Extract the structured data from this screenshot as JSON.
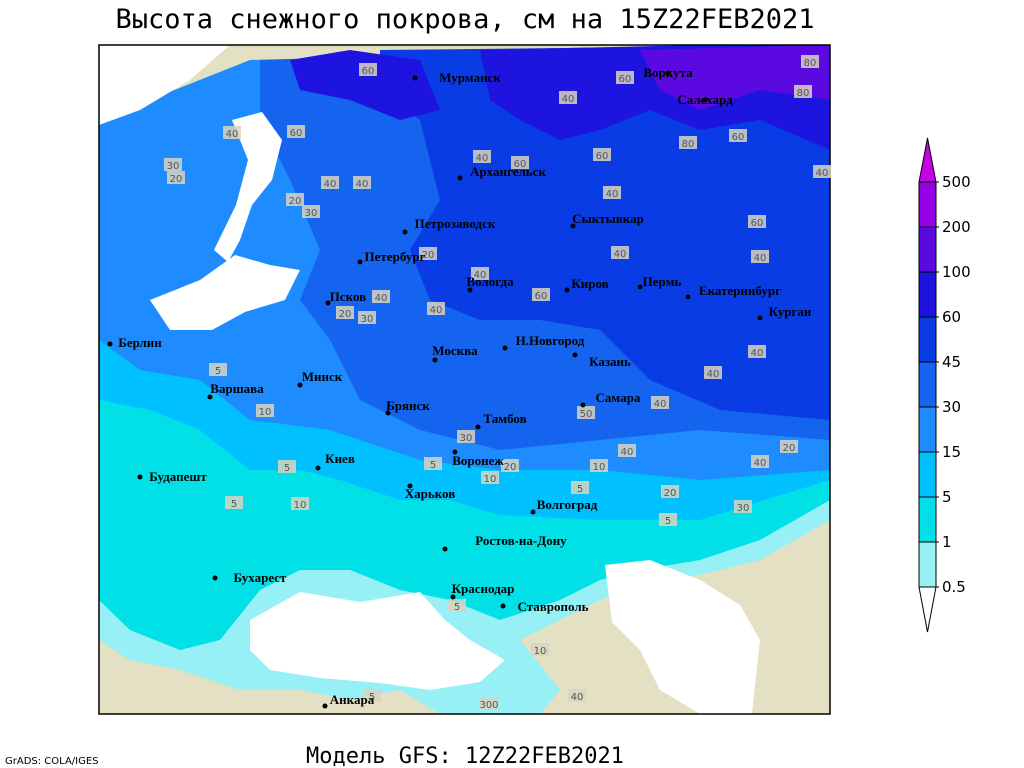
{
  "title": "Высота снежного покрова, см на 15Z22FEB2021",
  "footer": "Модель GFS: 12Z22FEB2021",
  "credit": "GrADS: COLA/IGES",
  "legend": {
    "levels": [
      0.5,
      1,
      5,
      15,
      30,
      45,
      60,
      100,
      200,
      500
    ],
    "colors": [
      "#ffffff",
      "#96f0f5",
      "#00e0e6",
      "#00c0ff",
      "#1e8cff",
      "#1464f0",
      "#0a3ce6",
      "#1e14e0",
      "#5a0ae0",
      "#9600e6",
      "#c800e6"
    ]
  },
  "cities": [
    "Мурманск",
    "Воркута",
    "Салехард",
    "Архангельск",
    "Петрозаводск",
    "Сыктывкар",
    "Петербург",
    "Вологда",
    "Киров",
    "Пермь",
    "Екатеринбург",
    "Курган",
    "Псков",
    "Берлин",
    "Москва",
    "Н.Новгород",
    "Казань",
    "Минск",
    "Варшава",
    "Самара",
    "Брянск",
    "Тамбов",
    "Киев",
    "Воронеж",
    "Будапешт",
    "Харьков",
    "Волгоград",
    "Ростов-на-Дону",
    "Бухарест",
    "Краснодар",
    "Ставрополь",
    "Анкара"
  ],
  "contour_labels": [
    60,
    40,
    60,
    30,
    20,
    40,
    40,
    30,
    20,
    40,
    60,
    60,
    40,
    60,
    80,
    60,
    80,
    80,
    40,
    40,
    60,
    40,
    40,
    40,
    20,
    40,
    20,
    30,
    40,
    60,
    40,
    40,
    40,
    40,
    40,
    20,
    50,
    30,
    20,
    5,
    10,
    5,
    5,
    10,
    5,
    10,
    5,
    20,
    5,
    30,
    10,
    5,
    300,
    5,
    40,
    10
  ]
}
